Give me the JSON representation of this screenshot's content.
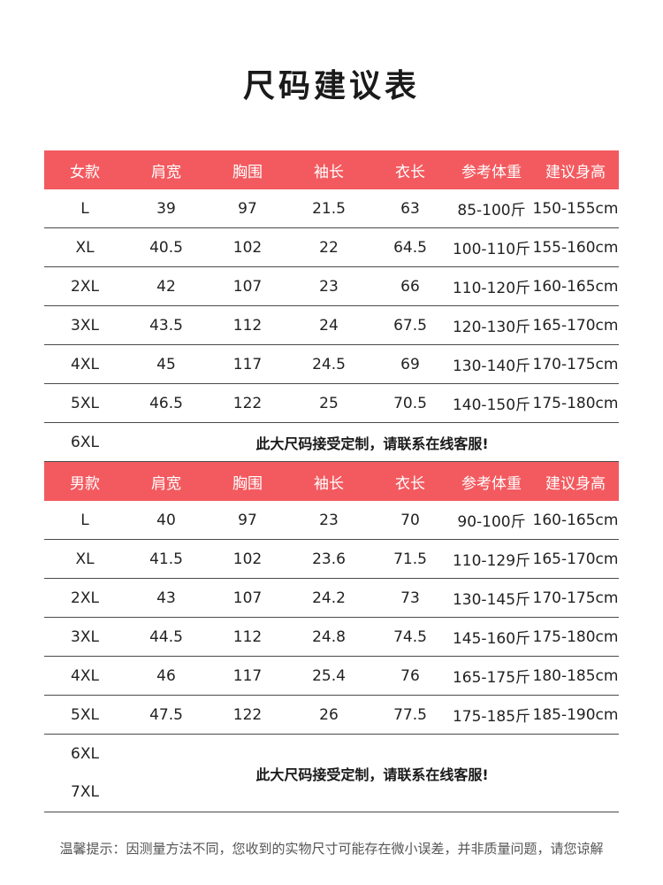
{
  "title": "尺码建议表",
  "columns": [
    "肩宽",
    "胸围",
    "袖长",
    "衣长",
    "参考体重",
    "建议身高"
  ],
  "women": {
    "label": "女款",
    "rows": [
      [
        "L",
        "39",
        "97",
        "21.5",
        "63",
        "85-100斤",
        "150-155cm"
      ],
      [
        "XL",
        "40.5",
        "102",
        "22",
        "64.5",
        "100-110斤",
        "155-160cm"
      ],
      [
        "2XL",
        "42",
        "107",
        "23",
        "66",
        "110-120斤",
        "160-165cm"
      ],
      [
        "3XL",
        "43.5",
        "112",
        "24",
        "67.5",
        "120-130斤",
        "165-170cm"
      ],
      [
        "4XL",
        "45",
        "117",
        "24.5",
        "69",
        "130-140斤",
        "170-175cm"
      ],
      [
        "5XL",
        "46.5",
        "122",
        "25",
        "70.5",
        "140-150斤",
        "175-180cm"
      ]
    ],
    "special_size": "6XL",
    "special_note": "此大尺码接受定制，请联系在线客服!"
  },
  "men": {
    "label": "男款",
    "rows": [
      [
        "L",
        "40",
        "97",
        "23",
        "70",
        "90-100斤",
        "160-165cm"
      ],
      [
        "XL",
        "41.5",
        "102",
        "23.6",
        "71.5",
        "110-129斤",
        "165-170cm"
      ],
      [
        "2XL",
        "43",
        "107",
        "24.2",
        "73",
        "130-145斤",
        "170-175cm"
      ],
      [
        "3XL",
        "44.5",
        "112",
        "24.8",
        "74.5",
        "145-160斤",
        "175-180cm"
      ],
      [
        "4XL",
        "46",
        "117",
        "25.4",
        "76",
        "165-175斤",
        "180-185cm"
      ],
      [
        "5XL",
        "47.5",
        "122",
        "26",
        "77.5",
        "175-185斤",
        "185-190cm"
      ]
    ],
    "special_sizes": [
      "6XL",
      "7XL"
    ],
    "special_note": "此大尺码接受定制，请联系在线客服!"
  },
  "footer": "温馨提示：因测量方法不同，您收到的实物尺寸可能存在微小误差，并非质量问题，请您谅解"
}
